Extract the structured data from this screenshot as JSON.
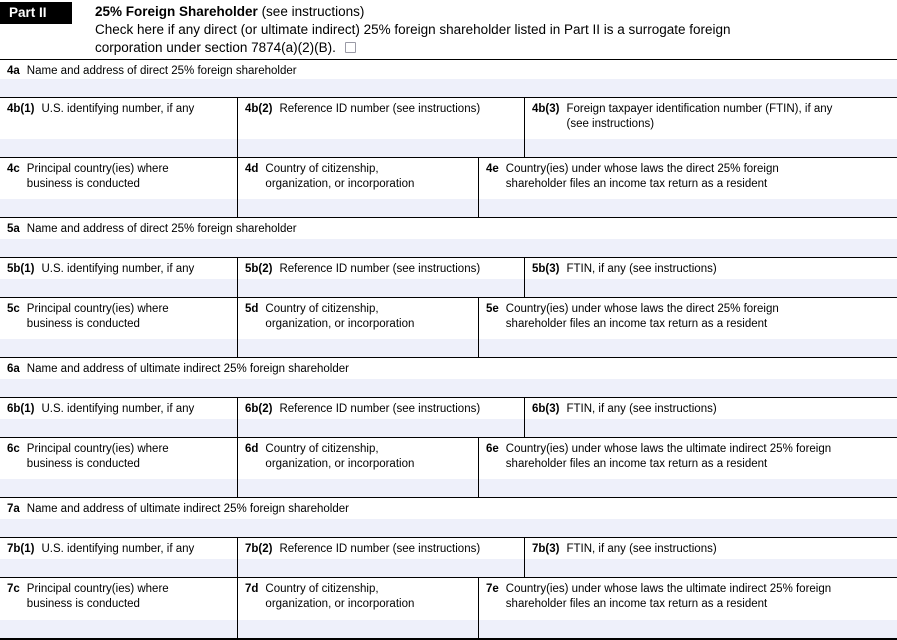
{
  "header": {
    "part_label": "Part II",
    "title": "25% Foreign Shareholder",
    "title_note": "(see instructions)",
    "check_text": "Check here if any direct (or ultimate indirect) 25% foreign shareholder listed in Part II is a surrogate foreign\ncorporation under section 7874(a)(2)(B).",
    "checkbox_checked": false
  },
  "colors": {
    "input_fill": "#eef0fa",
    "line": "#000000",
    "part_band_bg": "#000000",
    "checkbox_border": "#9a9aa6"
  },
  "sections": [
    {
      "a_num": "4a",
      "a_label": "Name and address of direct 25% foreign shareholder",
      "b1_num": "4b(1)",
      "b1_label": "U.S. identifying number, if any",
      "b2_num": "4b(2)",
      "b2_label": "Reference ID number (see instructions)",
      "b3_num": "4b(3)",
      "b3_label": "Foreign taxpayer identification number (FTIN), if any\n(see instructions)",
      "c_num": "4c",
      "c_label": "Principal country(ies) where\nbusiness is conducted",
      "d_num": "4d",
      "d_label": "Country of citizenship,\norganization, or incorporation",
      "e_num": "4e",
      "e_label": "Country(ies) under whose laws the direct 25% foreign\nshareholder files an income tax return as a resident"
    },
    {
      "a_num": "5a",
      "a_label": "Name and address of direct 25% foreign shareholder",
      "b1_num": "5b(1)",
      "b1_label": "U.S. identifying number, if any",
      "b2_num": "5b(2)",
      "b2_label": "Reference ID number (see instructions)",
      "b3_num": "5b(3)",
      "b3_label": "FTIN, if any (see instructions)",
      "c_num": "5c",
      "c_label": "Principal country(ies) where\nbusiness is conducted",
      "d_num": "5d",
      "d_label": "Country of citizenship,\norganization, or incorporation",
      "e_num": "5e",
      "e_label": "Country(ies) under whose laws the direct 25% foreign\nshareholder files an income tax return as a resident"
    },
    {
      "a_num": "6a",
      "a_label": "Name and address of ultimate indirect 25% foreign shareholder",
      "b1_num": "6b(1)",
      "b1_label": "U.S. identifying number, if any",
      "b2_num": "6b(2)",
      "b2_label": "Reference ID number (see instructions)",
      "b3_num": "6b(3)",
      "b3_label": "FTIN, if any (see instructions)",
      "c_num": "6c",
      "c_label": "Principal country(ies) where\nbusiness is conducted",
      "d_num": "6d",
      "d_label": "Country of citizenship,\norganization, or incorporation",
      "e_num": "6e",
      "e_label": "Country(ies) under whose laws the ultimate indirect 25% foreign\nshareholder files an income tax return as a resident"
    },
    {
      "a_num": "7a",
      "a_label": "Name and address of ultimate indirect 25% foreign shareholder",
      "b1_num": "7b(1)",
      "b1_label": "U.S. identifying number, if any",
      "b2_num": "7b(2)",
      "b2_label": "Reference ID number (see instructions)",
      "b3_num": "7b(3)",
      "b3_label": "FTIN, if any (see instructions)",
      "c_num": "7c",
      "c_label": "Principal country(ies) where\nbusiness is conducted",
      "d_num": "7d",
      "d_label": "Country of citizenship,\norganization, or incorporation",
      "e_num": "7e",
      "e_label": "Country(ies) under whose laws the ultimate indirect 25% foreign\nshareholder files an income tax return as a resident"
    }
  ]
}
